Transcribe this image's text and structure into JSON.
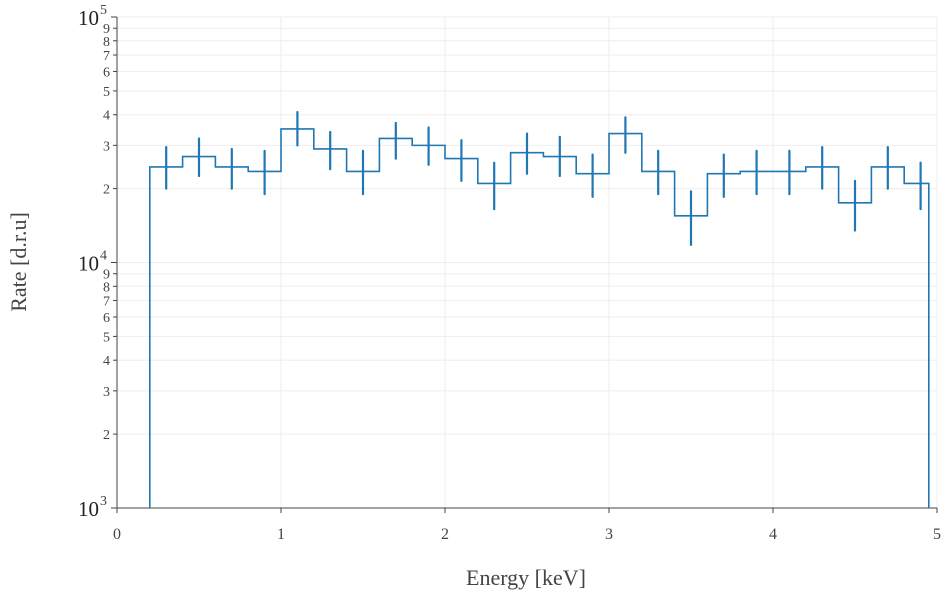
{
  "chart_data": {
    "type": "line",
    "subtype": "step-histogram-with-error-bars",
    "xlabel": "Energy [keV]",
    "ylabel": "Rate [d.r.u]",
    "xlim": [
      0,
      5
    ],
    "ylim": [
      1000,
      100000
    ],
    "yscale": "log",
    "grid": true,
    "x_ticks": [
      "0",
      "1",
      "2",
      "3",
      "4",
      "5"
    ],
    "y_major_ticks": [
      {
        "value": 1000,
        "base": "10",
        "exp": "3"
      },
      {
        "value": 10000,
        "base": "10",
        "exp": "4"
      },
      {
        "value": 100000,
        "base": "10",
        "exp": "5"
      }
    ],
    "y_minor_ticks": [
      {
        "value": 2000,
        "label": "2"
      },
      {
        "value": 3000,
        "label": "3"
      },
      {
        "value": 4000,
        "label": "4"
      },
      {
        "value": 5000,
        "label": "5"
      },
      {
        "value": 6000,
        "label": "6"
      },
      {
        "value": 7000,
        "label": "7"
      },
      {
        "value": 8000,
        "label": "8"
      },
      {
        "value": 9000,
        "label": "9"
      },
      {
        "value": 20000,
        "label": "2"
      },
      {
        "value": 30000,
        "label": "3"
      },
      {
        "value": 40000,
        "label": "4"
      },
      {
        "value": 50000,
        "label": "5"
      },
      {
        "value": 60000,
        "label": "6"
      },
      {
        "value": 70000,
        "label": "7"
      },
      {
        "value": 80000,
        "label": "8"
      },
      {
        "value": 90000,
        "label": "9"
      }
    ],
    "bin_edges": [
      0.2,
      0.4,
      0.6,
      0.8,
      1.0,
      1.2,
      1.4,
      1.6,
      1.8,
      2.0,
      2.2,
      2.4,
      2.6,
      2.8,
      3.0,
      3.2,
      3.4,
      3.6,
      3.8,
      4.0,
      4.2,
      4.4,
      4.6,
      4.8,
      4.95
    ],
    "x": [
      0.3,
      0.5,
      0.7,
      0.9,
      1.1,
      1.3,
      1.5,
      1.7,
      1.9,
      2.1,
      2.3,
      2.5,
      2.7,
      2.9,
      3.1,
      3.3,
      3.5,
      3.7,
      3.9,
      4.1,
      4.3,
      4.5,
      4.7,
      4.9
    ],
    "values": [
      24500,
      27000,
      24500,
      23500,
      35000,
      29000,
      23500,
      32000,
      30000,
      26500,
      21000,
      28000,
      27000,
      23000,
      33500,
      23500,
      15500,
      23000,
      23500,
      23500,
      24500,
      17500,
      24500,
      21000
    ],
    "err_low": [
      20000,
      22500,
      20000,
      19000,
      30000,
      24000,
      19000,
      26500,
      25000,
      21500,
      16500,
      23000,
      22500,
      18500,
      28000,
      19000,
      11800,
      18500,
      19000,
      19000,
      20000,
      13500,
      20000,
      16500
    ],
    "err_high": [
      29500,
      32000,
      29000,
      28500,
      41000,
      34000,
      28500,
      37000,
      35500,
      31500,
      25500,
      33500,
      32500,
      27500,
      39000,
      28500,
      19500,
      27500,
      28500,
      28500,
      29500,
      21500,
      29500,
      25500
    ],
    "baseline": 1000,
    "series_color": "#1f77b4"
  }
}
